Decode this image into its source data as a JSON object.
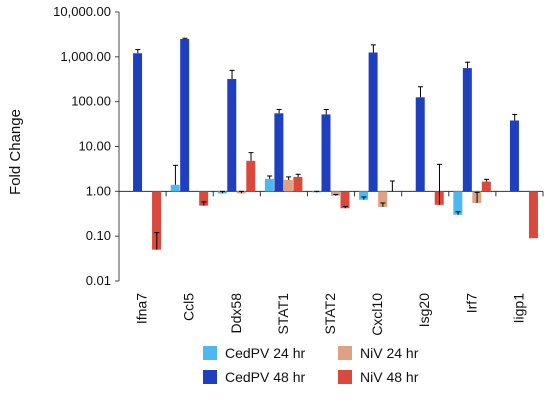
{
  "chart_data": {
    "type": "bar",
    "title": "",
    "xlabel": "",
    "ylabel": "Fold Change",
    "yscale": "log",
    "ylim": [
      0.01,
      10000
    ],
    "yticks": [
      "10,000.00",
      "1,000.00",
      "100.00",
      "10.00",
      "1.00",
      "0.10",
      "0.01"
    ],
    "baseline": 1,
    "grid": false,
    "legend_position": "bottom",
    "categories": [
      "Ifna7",
      "Ccl5",
      "Ddx58",
      "STAT1",
      "STAT2",
      "Cxcl10",
      "Isg20",
      "Irf7",
      "Iigp1"
    ],
    "series": [
      {
        "name": "CedPV 24 hr",
        "color": "#4db8f0",
        "values": [
          1.0,
          1.4,
          0.9,
          1.9,
          0.95,
          0.65,
          1.0,
          0.3,
          1.0
        ],
        "errors": [
          0,
          2.4,
          0.1,
          0.3,
          0.05,
          0.1,
          0,
          0.05,
          0
        ]
      },
      {
        "name": "CedPV 48 hr",
        "color": "#1f3fbf",
        "values": [
          1200,
          2500,
          320,
          55,
          52,
          1250,
          125,
          560,
          38
        ],
        "errors": [
          250,
          100,
          180,
          12,
          15,
          600,
          90,
          200,
          14
        ]
      },
      {
        "name": "NiV 24 hr",
        "color": "#dea184",
        "values": [
          1.0,
          1.0,
          0.9,
          1.8,
          0.8,
          0.45,
          1.0,
          0.55,
          1.0
        ],
        "errors": [
          0,
          0,
          0.1,
          0.3,
          0.05,
          0.1,
          0,
          0.4,
          0
        ]
      },
      {
        "name": "NiV 48 hr",
        "color": "#d9493c",
        "values": [
          0.05,
          0.48,
          4.8,
          2.1,
          0.42,
          1.0,
          0.5,
          1.65,
          0.09
        ],
        "errors": [
          0.07,
          0.1,
          2.5,
          0.3,
          0.04,
          0.7,
          3.5,
          0.2,
          0
        ]
      }
    ]
  }
}
